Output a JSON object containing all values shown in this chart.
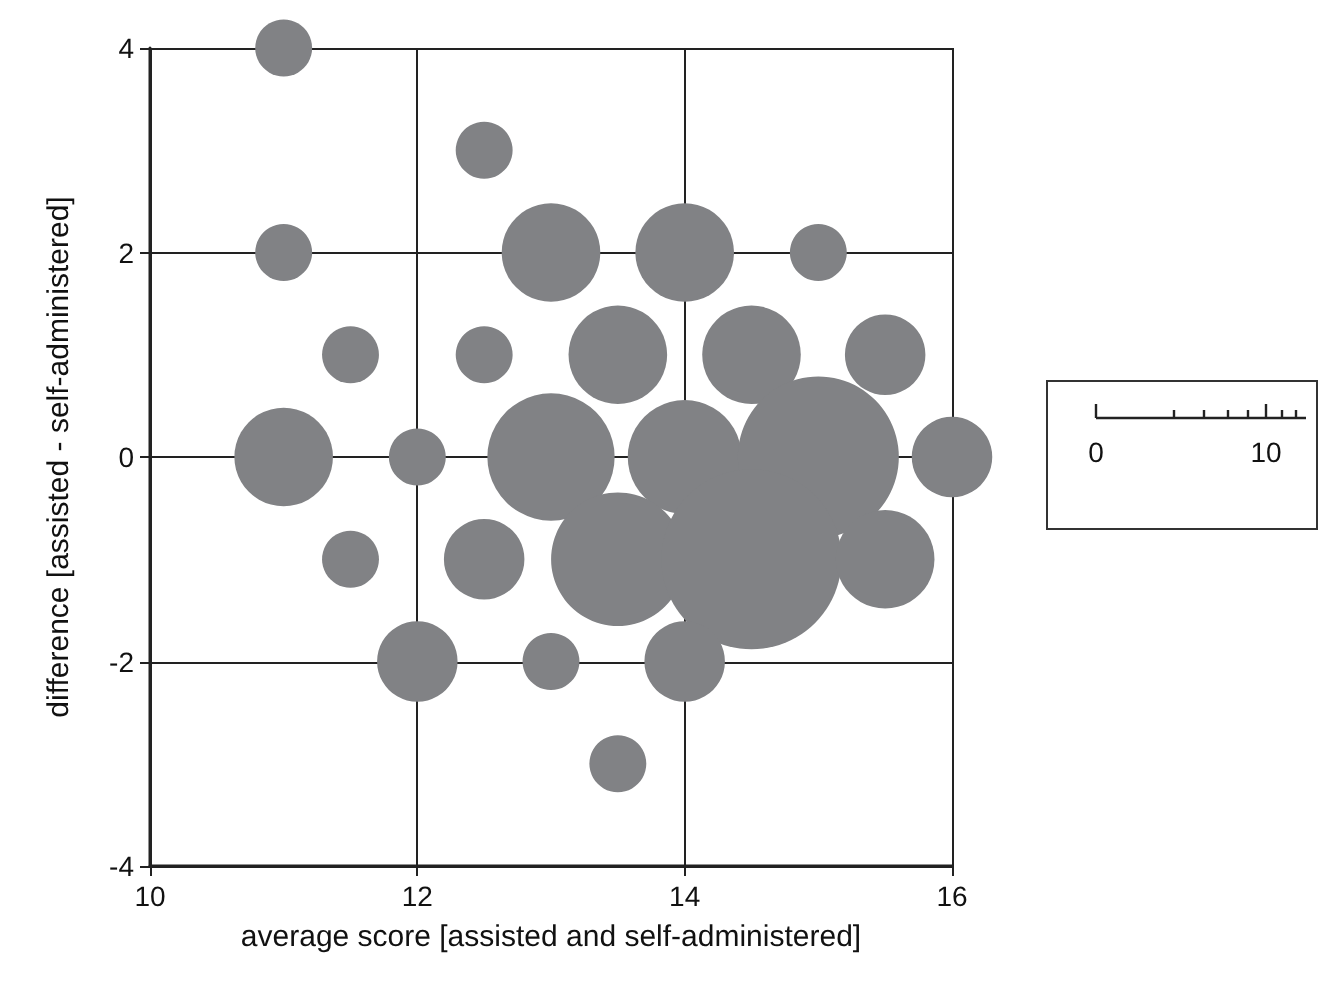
{
  "chart_data": {
    "type": "bubble",
    "xlabel": "average score [assisted and self-administered]",
    "ylabel": "difference [assisted - self-administered]",
    "xlim": [
      10,
      16
    ],
    "xticks": [
      10,
      12,
      14,
      16
    ],
    "ylim": [
      -4,
      4
    ],
    "yticks": [
      -4,
      -2,
      0,
      2,
      4
    ],
    "grid": true,
    "annotations": [
      "0",
      "10"
    ],
    "series": [
      {
        "color": "#818285",
        "x": [
          11,
          12.5,
          11,
          13,
          14,
          15,
          11.5,
          12.5,
          13.5,
          14.5,
          15.5,
          11,
          12,
          13,
          14,
          15,
          16,
          11.5,
          12.5,
          13.5,
          14.5,
          15.5,
          12,
          13,
          14,
          13.5
        ],
        "values": [
          4,
          3,
          2,
          2,
          2,
          2,
          1,
          1,
          1,
          1,
          1,
          0,
          0,
          0,
          0,
          0,
          0,
          -1,
          -1,
          -1,
          -1,
          -1,
          -2,
          -2,
          -2,
          -3
        ],
        "sizes": [
          0.1,
          0.1,
          0.1,
          0.3,
          0.3,
          0.1,
          0.1,
          0.1,
          0.3,
          0.3,
          0.2,
          0.3,
          0.1,
          0.5,
          0.4,
          0.8,
          0.2,
          0.1,
          0.2,
          0.55,
          1,
          0.3,
          0.2,
          0.1,
          0.2,
          0.1
        ]
      }
    ]
  }
}
